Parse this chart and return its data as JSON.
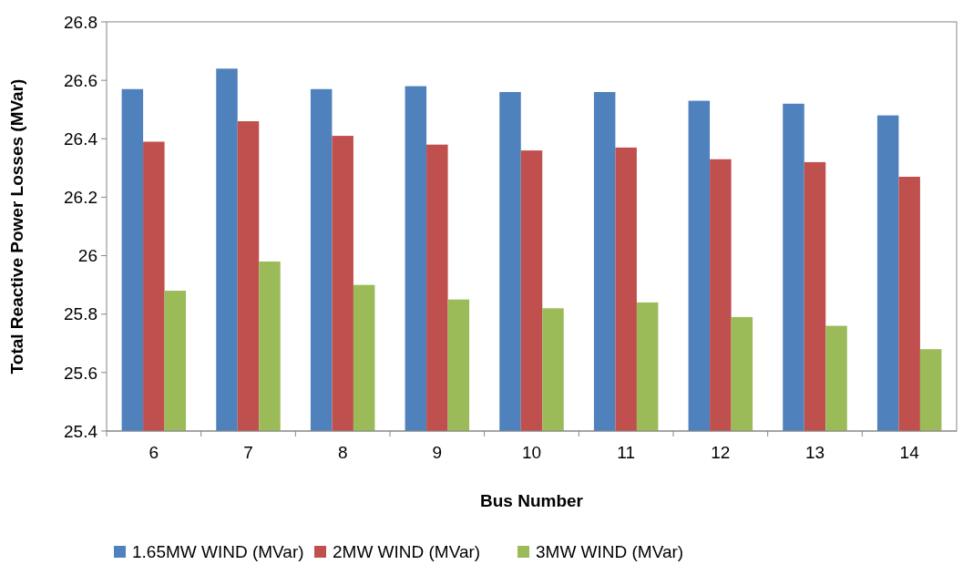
{
  "chart_data": {
    "type": "bar",
    "xlabel": "Bus Number",
    "ylabel": "Total Reactive Power Losses (MVar)",
    "categories": [
      "6",
      "7",
      "8",
      "9",
      "10",
      "11",
      "12",
      "13",
      "14"
    ],
    "series": [
      {
        "name": "1.65MW WIND (MVar)",
        "color": "#4f81bd",
        "values": [
          26.57,
          26.64,
          26.57,
          26.58,
          26.56,
          26.56,
          26.53,
          26.52,
          26.48
        ]
      },
      {
        "name": "2MW WIND (MVar)",
        "color": "#c0504d",
        "values": [
          26.39,
          26.46,
          26.41,
          26.38,
          26.36,
          26.37,
          26.33,
          26.32,
          26.27
        ]
      },
      {
        "name": "3MW WIND (MVar)",
        "color": "#9bbb59",
        "values": [
          25.88,
          25.98,
          25.9,
          25.85,
          25.82,
          25.84,
          25.79,
          25.76,
          25.68
        ]
      }
    ],
    "ylim": [
      25.4,
      26.8
    ],
    "yticks": [
      {
        "value": 25.4,
        "label": "25.4"
      },
      {
        "value": 25.6,
        "label": "25.6"
      },
      {
        "value": 25.8,
        "label": "25.8"
      },
      {
        "value": 26,
        "label": "26"
      },
      {
        "value": 26.2,
        "label": "26.2"
      },
      {
        "value": 26.4,
        "label": "26.4"
      },
      {
        "value": 26.6,
        "label": "26.6"
      },
      {
        "value": 26.8,
        "label": "26.8"
      }
    ],
    "grid": false,
    "legend": "bottom"
  }
}
